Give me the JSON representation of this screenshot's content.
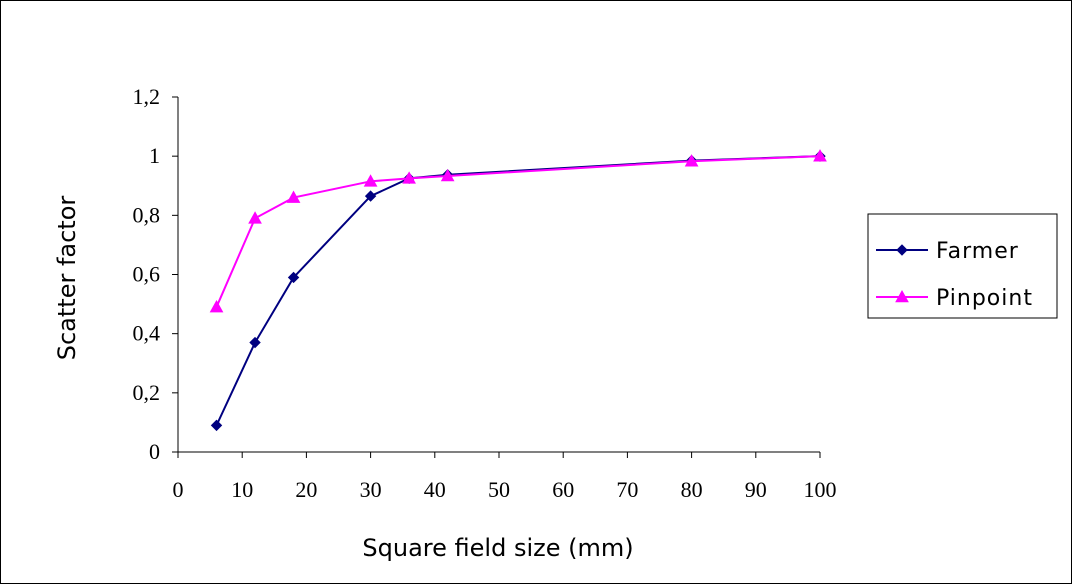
{
  "chart_data": {
    "type": "line",
    "title": "",
    "xlabel": "Square field size (mm)",
    "ylabel": "Scatter factor",
    "xlim": [
      0,
      100
    ],
    "ylim": [
      0,
      1.2
    ],
    "x_ticks": [
      "0",
      "10",
      "20",
      "30",
      "40",
      "50",
      "60",
      "70",
      "80",
      "90",
      "100"
    ],
    "y_ticks": [
      "0",
      "0,2",
      "0,4",
      "0,6",
      "0,8",
      "1",
      "1,2"
    ],
    "grid": false,
    "legend_position": "right",
    "series": [
      {
        "name": "Farmer",
        "color": "#000080",
        "marker": "diamond",
        "x": [
          6,
          12,
          18,
          30,
          36,
          42,
          80,
          100
        ],
        "values": [
          0.09,
          0.37,
          0.59,
          0.865,
          0.925,
          0.937,
          0.985,
          1.0
        ]
      },
      {
        "name": "Pinpoint",
        "color": "#ff00ff",
        "marker": "triangle",
        "x": [
          6,
          12,
          18,
          30,
          36,
          42,
          80,
          100
        ],
        "values": [
          0.49,
          0.79,
          0.86,
          0.915,
          0.925,
          0.933,
          0.983,
          1.0
        ]
      }
    ]
  }
}
